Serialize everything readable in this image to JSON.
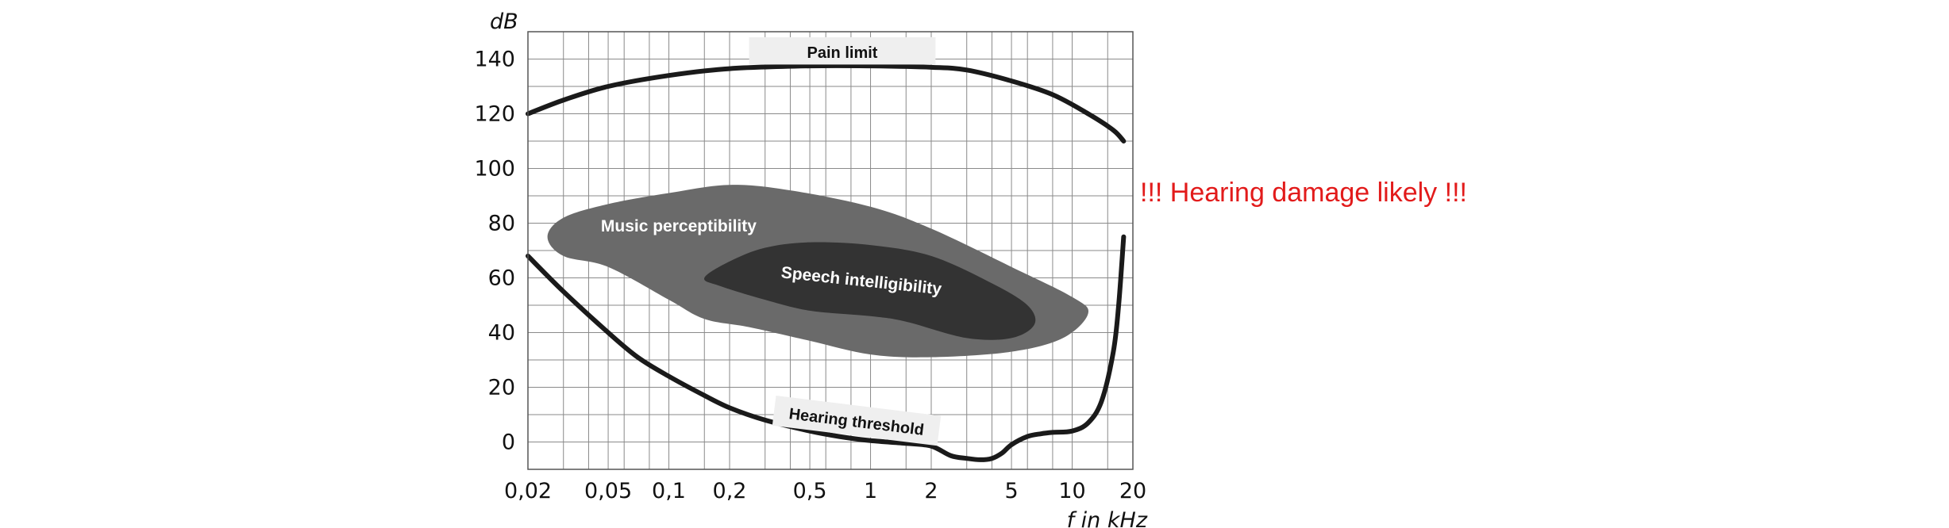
{
  "chart_data": {
    "type": "line",
    "xlabel": "f in kHz",
    "ylabel": "dB",
    "x_scale": "log",
    "xlim": [
      0.02,
      20
    ],
    "ylim": [
      -10,
      150
    ],
    "x_ticks": [
      0.02,
      0.05,
      0.1,
      0.2,
      0.5,
      1,
      2,
      5,
      10,
      20
    ],
    "x_tick_labels": [
      "0,02",
      "0,05",
      "0,1",
      "0,2",
      "0,5",
      "1",
      "2",
      "5",
      "10",
      "20"
    ],
    "y_ticks": [
      0,
      20,
      40,
      60,
      80,
      100,
      120,
      140
    ],
    "y_tick_labels": [
      "0",
      "20",
      "40",
      "60",
      "80",
      "100",
      "120",
      "140"
    ],
    "grid_x": [
      0.02,
      0.03,
      0.04,
      0.05,
      0.06,
      0.08,
      0.1,
      0.15,
      0.2,
      0.3,
      0.4,
      0.5,
      0.6,
      0.8,
      1,
      1.5,
      2,
      3,
      4,
      5,
      6,
      8,
      10,
      15,
      20
    ],
    "grid_y": [
      -10,
      0,
      10,
      20,
      30,
      40,
      50,
      60,
      70,
      80,
      90,
      100,
      110,
      120,
      130,
      140,
      150
    ],
    "grid": true,
    "series": [
      {
        "name": "Pain limit",
        "x": [
          0.02,
          0.03,
          0.05,
          0.1,
          0.2,
          0.5,
          1,
          2,
          3,
          5,
          8,
          12,
          16,
          18
        ],
        "y": [
          120,
          125,
          130,
          134,
          136.5,
          137.5,
          137.5,
          137,
          136,
          132,
          127,
          120,
          114,
          110
        ]
      },
      {
        "name": "Hearing threshold",
        "x": [
          0.02,
          0.03,
          0.05,
          0.07,
          0.1,
          0.15,
          0.2,
          0.3,
          0.5,
          0.7,
          1,
          1.5,
          2,
          2.5,
          3,
          3.5,
          4,
          4.5,
          5,
          6,
          7,
          8,
          10,
          12,
          14,
          16,
          17,
          18
        ],
        "y": [
          68,
          55,
          40,
          31,
          24,
          17,
          12.5,
          8,
          4,
          2,
          0.5,
          -0.5,
          -1.5,
          -5,
          -6,
          -6.5,
          -6,
          -4,
          -1,
          2,
          3,
          3.5,
          4,
          7,
          15,
          33,
          50,
          75
        ]
      }
    ],
    "regions": [
      {
        "name": "Music perceptibility",
        "color": "#6a6a6a",
        "boundary": [
          [
            0.05,
            64
          ],
          [
            0.03,
            68
          ],
          [
            0.025,
            75
          ],
          [
            0.03,
            82
          ],
          [
            0.05,
            87
          ],
          [
            0.1,
            91
          ],
          [
            0.2,
            94
          ],
          [
            0.4,
            92
          ],
          [
            1,
            86
          ],
          [
            2,
            78
          ],
          [
            5,
            64
          ],
          [
            10,
            53
          ],
          [
            12,
            47
          ],
          [
            9,
            38
          ],
          [
            5,
            33
          ],
          [
            2,
            31
          ],
          [
            1,
            32
          ],
          [
            0.5,
            37
          ],
          [
            0.25,
            42
          ],
          [
            0.15,
            45
          ],
          [
            0.1,
            52
          ]
        ],
        "label": "Music perceptibility"
      },
      {
        "name": "Speech intelligibility",
        "color": "#333333",
        "boundary": [
          [
            0.15,
            60
          ],
          [
            0.2,
            66
          ],
          [
            0.3,
            71
          ],
          [
            0.5,
            73
          ],
          [
            1,
            72
          ],
          [
            2,
            68
          ],
          [
            4,
            58
          ],
          [
            6,
            50
          ],
          [
            6.5,
            43
          ],
          [
            5,
            38
          ],
          [
            3,
            38
          ],
          [
            1.5,
            44
          ],
          [
            1,
            46
          ],
          [
            0.5,
            48
          ],
          [
            0.3,
            52
          ],
          [
            0.18,
            57
          ]
        ],
        "label": "Speech intelligibility"
      }
    ],
    "annotations": {
      "pain_limit_label": "Pain limit",
      "hearing_threshold_label": "Hearing threshold",
      "warning": "!!! Hearing damage likely !!!"
    }
  },
  "colors": {
    "curve": "#1a1a1a",
    "grid": "#8a8a8a",
    "music_region": "#6a6a6a",
    "speech_region": "#333333",
    "label_box": "#efefef",
    "warning": "#e21b1b"
  }
}
